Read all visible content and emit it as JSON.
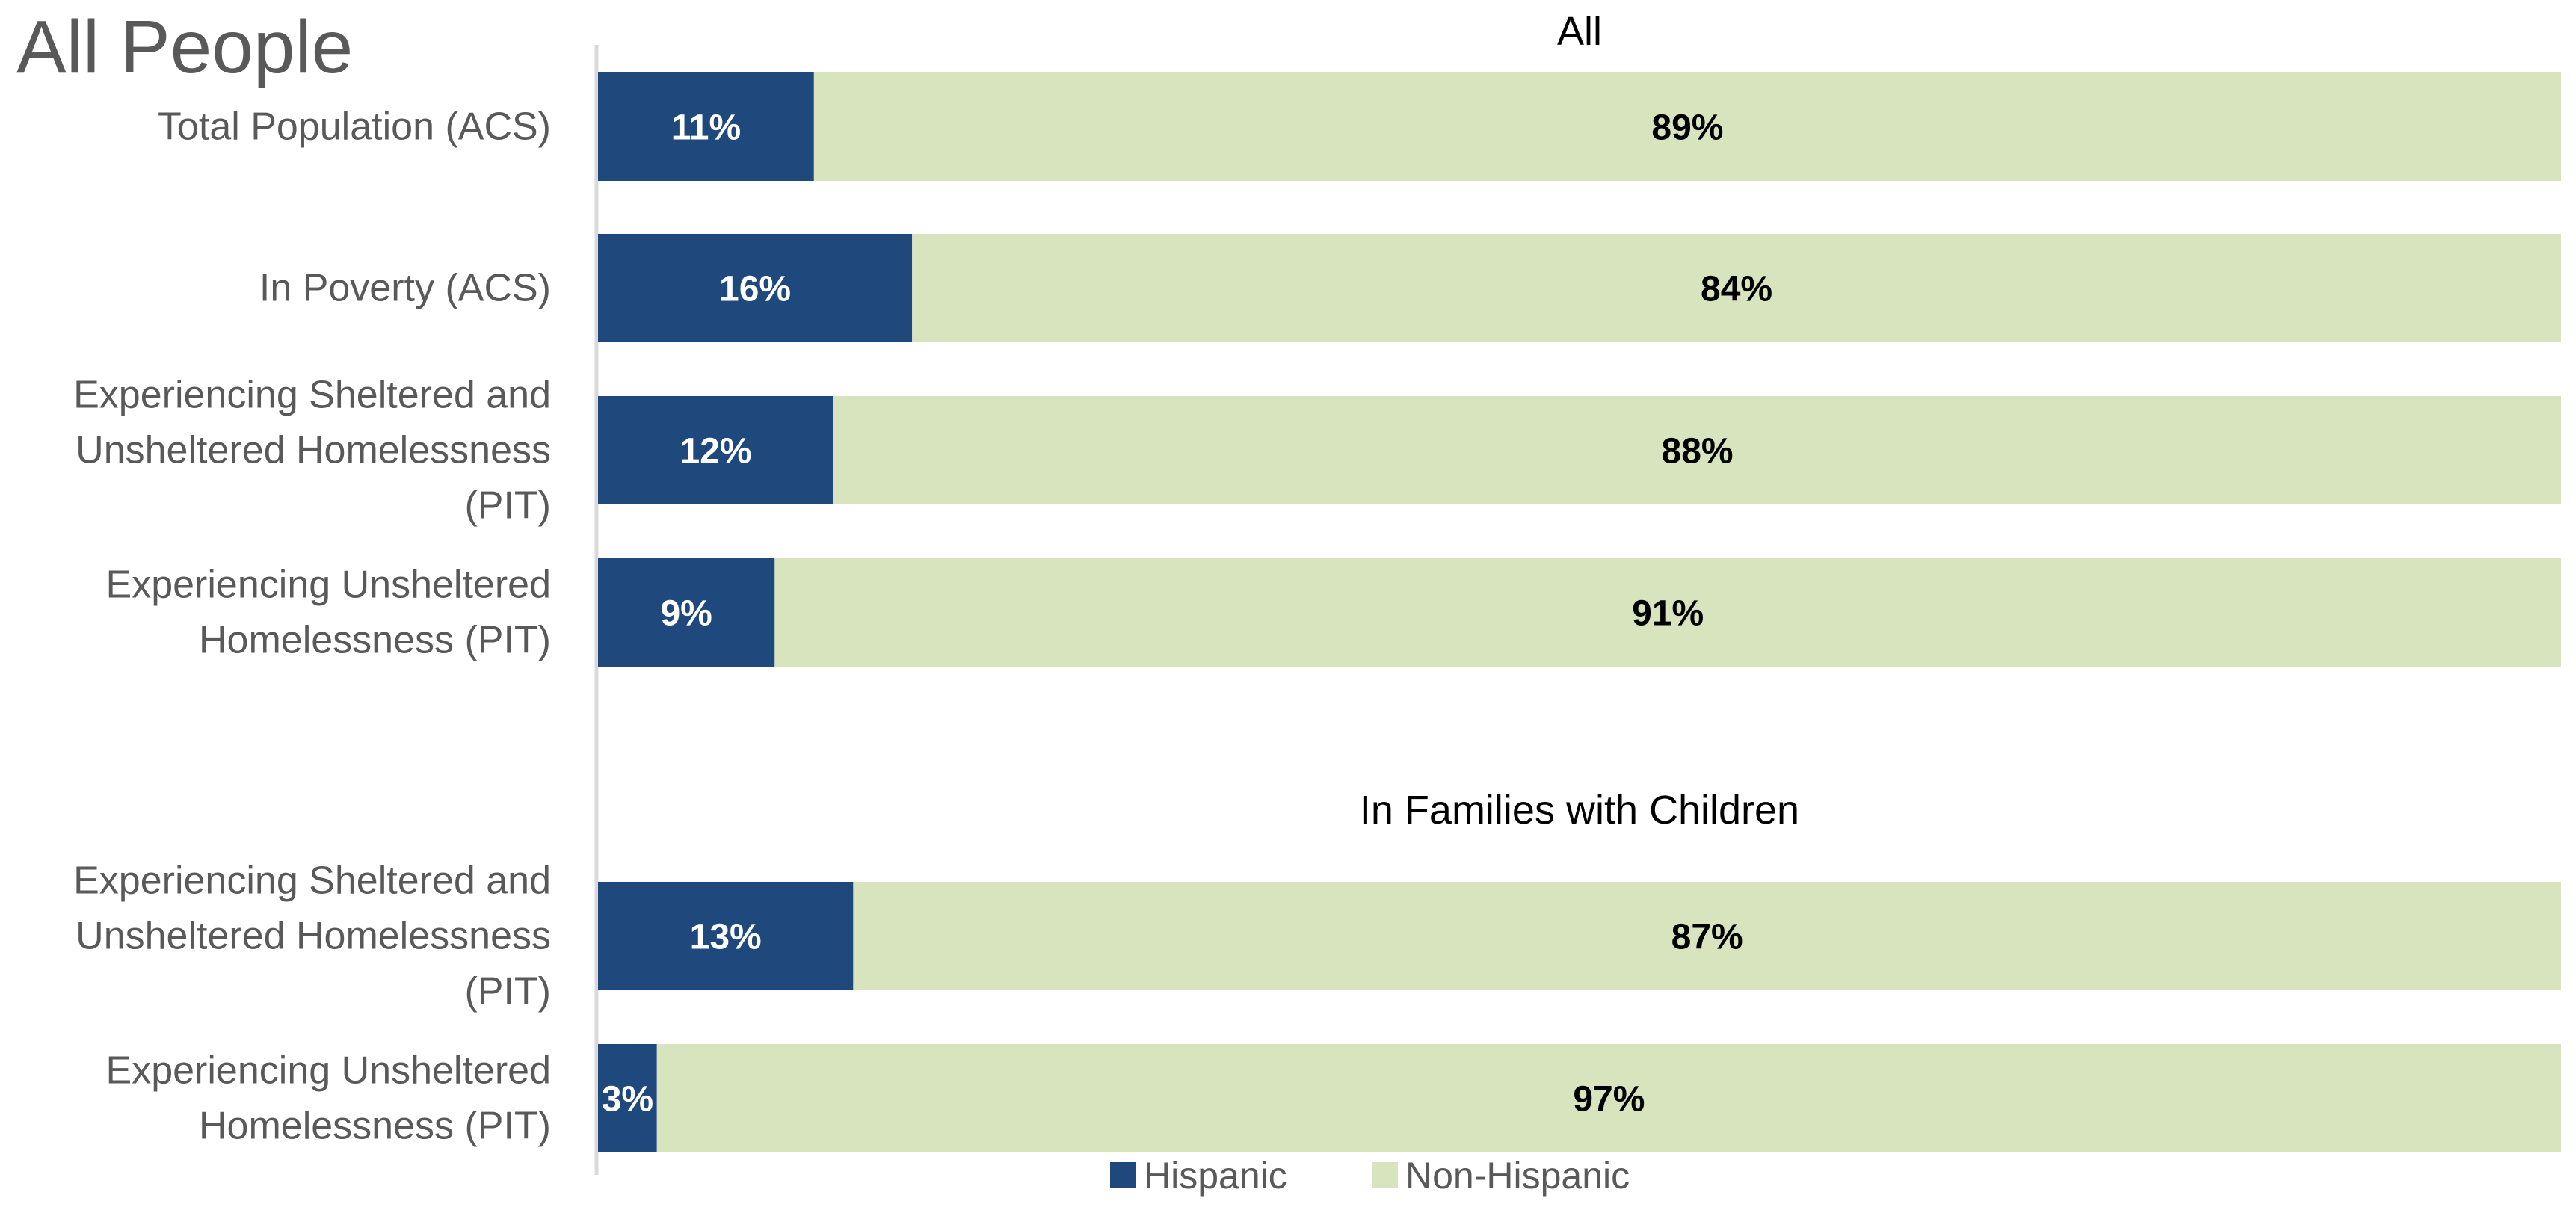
{
  "chart_data": {
    "type": "bar",
    "orientation": "horizontal",
    "stacked": "percent",
    "title": "All People",
    "xlim": [
      0,
      100
    ],
    "unit": "%",
    "grid": false,
    "legend_position": "bottom",
    "series": [
      {
        "name": "Hispanic",
        "color": "#1F497D",
        "label_color": "#FFFFFF"
      },
      {
        "name": "Non-Hispanic",
        "color": "#D7E4BD",
        "label_color": "#000000"
      }
    ],
    "groups": [
      {
        "title": "All",
        "categories": [
          {
            "label_lines": [
              "Total Population (ACS)"
            ],
            "values": [
              11,
              89
            ]
          },
          {
            "label_lines": [
              "In Poverty (ACS)"
            ],
            "values": [
              16,
              84
            ]
          },
          {
            "label_lines": [
              "Experiencing Sheltered and",
              "Unsheltered Homelessness",
              "(PIT)"
            ],
            "values": [
              12,
              88
            ]
          },
          {
            "label_lines": [
              "Experiencing Unsheltered",
              "Homelessness (PIT)"
            ],
            "values": [
              9,
              91
            ]
          }
        ]
      },
      {
        "title": "In Families with Children",
        "categories": [
          {
            "label_lines": [
              "Experiencing Sheltered and",
              "Unsheltered Homelessness",
              "(PIT)"
            ],
            "values": [
              13,
              87
            ]
          },
          {
            "label_lines": [
              "Experiencing Unsheltered",
              "Homelessness (PIT)"
            ],
            "values": [
              3,
              97
            ]
          }
        ]
      }
    ]
  }
}
